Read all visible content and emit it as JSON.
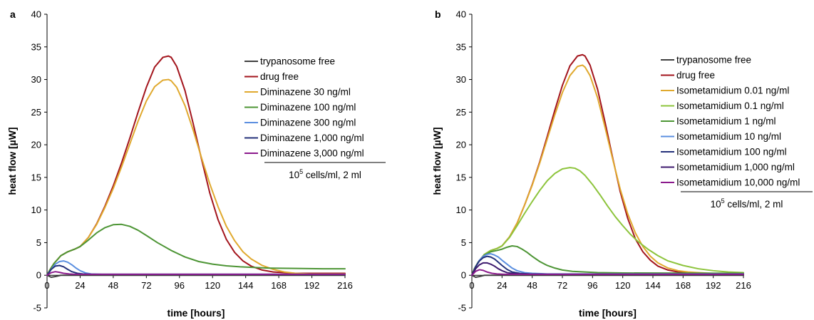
{
  "chart_data": [
    {
      "type": "line",
      "panel_label": "a",
      "xlabel": "time [hours]",
      "ylabel": "heat flow [µW]",
      "xlim": [
        0,
        216
      ],
      "ylim": [
        -5,
        40
      ],
      "xticks": [
        0,
        24,
        48,
        72,
        96,
        120,
        144,
        168,
        192,
        216
      ],
      "yticks": [
        -5,
        0,
        5,
        10,
        15,
        20,
        25,
        30,
        35,
        40
      ],
      "legend_position": "right",
      "note_base": "10",
      "note_exp": "5",
      "note_rest": " cells/ml, 2 ml",
      "series": [
        {
          "name": "trypanosome free",
          "color": "#404040",
          "x": [
            0,
            3,
            6,
            10,
            16,
            24,
            60,
            120,
            216
          ],
          "y": [
            0,
            -0.3,
            -0.2,
            0,
            0,
            0,
            0,
            0,
            0
          ]
        },
        {
          "name": "drug free",
          "color": "#a3151d",
          "x": [
            0,
            2,
            5,
            10,
            15,
            20,
            24,
            30,
            36,
            42,
            48,
            54,
            60,
            66,
            72,
            78,
            84,
            88,
            90,
            94,
            100,
            106,
            112,
            118,
            124,
            130,
            136,
            142,
            148,
            156,
            164,
            172,
            180,
            190,
            200,
            216
          ],
          "y": [
            0,
            0.8,
            1.8,
            3.0,
            3.6,
            4.0,
            4.4,
            5.8,
            7.9,
            10.6,
            13.7,
            17.2,
            21.0,
            25.0,
            28.8,
            31.9,
            33.4,
            33.6,
            33.4,
            32.0,
            28.3,
            23.2,
            17.8,
            12.6,
            8.5,
            5.5,
            3.5,
            2.2,
            1.4,
            0.8,
            0.5,
            0.4,
            0.3,
            0.3,
            0.3,
            0.3
          ]
        },
        {
          "name": "Diminazene 30 ng/ml",
          "color": "#e0a92e",
          "x": [
            0,
            2,
            5,
            10,
            15,
            20,
            24,
            30,
            36,
            42,
            48,
            54,
            60,
            66,
            72,
            78,
            84,
            88,
            90,
            94,
            100,
            106,
            112,
            118,
            124,
            130,
            136,
            142,
            148,
            156,
            164,
            172,
            180,
            190,
            200,
            216
          ],
          "y": [
            0,
            0.8,
            1.8,
            3.0,
            3.6,
            4.0,
            4.4,
            5.8,
            7.8,
            10.4,
            13.3,
            16.6,
            20.1,
            23.6,
            26.7,
            28.9,
            29.9,
            30.0,
            29.8,
            28.8,
            26.0,
            22.2,
            18.0,
            14.0,
            10.5,
            7.5,
            5.3,
            3.6,
            2.5,
            1.5,
            0.9,
            0.5,
            0.3,
            0.2,
            0.2,
            0.2
          ]
        },
        {
          "name": "Diminazene 100 ng/ml",
          "color": "#4d9535",
          "x": [
            0,
            2,
            5,
            10,
            15,
            20,
            24,
            30,
            36,
            42,
            48,
            54,
            60,
            66,
            72,
            80,
            90,
            100,
            110,
            120,
            130,
            140,
            150,
            160,
            180,
            200,
            216
          ],
          "y": [
            0,
            0.8,
            1.8,
            3.0,
            3.6,
            4.0,
            4.4,
            5.4,
            6.5,
            7.3,
            7.75,
            7.8,
            7.5,
            6.9,
            6.1,
            5.0,
            3.8,
            2.8,
            2.1,
            1.7,
            1.45,
            1.3,
            1.2,
            1.1,
            1.05,
            1.0,
            1.0
          ]
        },
        {
          "name": "Diminazene 300 ng/ml",
          "color": "#5b8fe0",
          "x": [
            0,
            3,
            6,
            9,
            12,
            15,
            18,
            21,
            24,
            28,
            32,
            40,
            60,
            216
          ],
          "y": [
            0,
            0.9,
            1.7,
            2.1,
            2.2,
            2.0,
            1.6,
            1.1,
            0.7,
            0.35,
            0.2,
            0.15,
            0.15,
            0.15
          ]
        },
        {
          "name": "Diminazene 1,000 ng/ml",
          "color": "#24317a",
          "x": [
            0,
            3,
            6,
            9,
            12,
            15,
            18,
            22,
            26,
            32,
            60,
            216
          ],
          "y": [
            0,
            0.9,
            1.4,
            1.5,
            1.3,
            0.9,
            0.55,
            0.3,
            0.2,
            0.15,
            0.15,
            0.15
          ]
        },
        {
          "name": "Diminazene 3,000 ng/ml",
          "color": "#8b1a8c",
          "x": [
            0,
            3,
            6,
            9,
            12,
            16,
            20,
            26,
            60,
            216
          ],
          "y": [
            0,
            0.4,
            0.55,
            0.45,
            0.3,
            0.2,
            0.15,
            0.15,
            0.15,
            0.15
          ]
        }
      ]
    },
    {
      "type": "line",
      "panel_label": "b",
      "xlabel": "time [hours]",
      "ylabel": "heat flow [µW]",
      "xlim": [
        0,
        216
      ],
      "ylim": [
        -5,
        40
      ],
      "xticks": [
        0,
        24,
        48,
        72,
        96,
        120,
        144,
        168,
        192,
        216
      ],
      "yticks": [
        -5,
        0,
        5,
        10,
        15,
        20,
        25,
        30,
        35,
        40
      ],
      "legend_position": "right",
      "note_base": "10",
      "note_exp": "5",
      "note_rest": " cells/ml, 2 ml",
      "series": [
        {
          "name": "trypanosome free",
          "color": "#404040",
          "x": [
            0,
            3,
            6,
            10,
            16,
            24,
            60,
            120,
            216
          ],
          "y": [
            0,
            -0.3,
            -0.2,
            0,
            0,
            0,
            0,
            0,
            0
          ]
        },
        {
          "name": "drug free",
          "color": "#a3151d",
          "x": [
            0,
            2,
            5,
            10,
            15,
            20,
            24,
            30,
            36,
            42,
            48,
            54,
            60,
            66,
            72,
            78,
            84,
            88,
            90,
            94,
            100,
            106,
            112,
            118,
            124,
            130,
            136,
            142,
            148,
            156,
            164,
            172,
            180,
            190,
            200,
            216
          ],
          "y": [
            0,
            1.0,
            2.0,
            3.2,
            3.8,
            4.1,
            4.5,
            5.9,
            8.0,
            10.8,
            13.9,
            17.4,
            21.3,
            25.3,
            29.1,
            32.1,
            33.6,
            33.8,
            33.6,
            32.2,
            28.5,
            23.4,
            18.0,
            12.8,
            8.7,
            5.6,
            3.6,
            2.3,
            1.4,
            0.8,
            0.5,
            0.4,
            0.3,
            0.3,
            0.3,
            0.3
          ]
        },
        {
          "name": "Isometamidium 0.01 ng/ml",
          "color": "#e0a92e",
          "x": [
            0,
            2,
            5,
            10,
            15,
            20,
            24,
            30,
            36,
            42,
            48,
            54,
            60,
            66,
            72,
            78,
            84,
            88,
            90,
            94,
            100,
            106,
            112,
            118,
            124,
            130,
            136,
            142,
            148,
            156,
            164,
            172,
            180,
            190,
            200,
            216
          ],
          "y": [
            0,
            1.0,
            2.0,
            3.2,
            3.8,
            4.1,
            4.5,
            5.9,
            8.0,
            10.8,
            13.8,
            17.2,
            20.9,
            24.6,
            28.0,
            30.6,
            32.0,
            32.2,
            31.9,
            30.6,
            27.2,
            22.6,
            17.8,
            13.2,
            9.4,
            6.5,
            4.4,
            2.9,
            1.9,
            1.1,
            0.7,
            0.5,
            0.4,
            0.3,
            0.3,
            0.3
          ]
        },
        {
          "name": "Isometamidium 0.1 ng/ml",
          "color": "#8dc43c",
          "x": [
            0,
            2,
            5,
            10,
            15,
            20,
            24,
            30,
            36,
            42,
            48,
            54,
            60,
            66,
            72,
            78,
            82,
            86,
            90,
            96,
            102,
            108,
            114,
            120,
            126,
            132,
            140,
            148,
            156,
            168,
            180,
            192,
            204,
            216
          ],
          "y": [
            0,
            1.0,
            2.0,
            3.2,
            3.8,
            4.1,
            4.5,
            5.8,
            7.6,
            9.5,
            11.3,
            13.0,
            14.5,
            15.6,
            16.3,
            16.5,
            16.4,
            16.0,
            15.3,
            13.9,
            12.3,
            10.6,
            9.0,
            7.6,
            6.3,
            5.2,
            4.0,
            3.0,
            2.2,
            1.5,
            1.0,
            0.7,
            0.5,
            0.4
          ]
        },
        {
          "name": "Isometamidium 1 ng/ml",
          "color": "#4d9535",
          "x": [
            0,
            2,
            5,
            10,
            15,
            20,
            24,
            28,
            32,
            36,
            40,
            44,
            48,
            54,
            60,
            66,
            72,
            80,
            90,
            100,
            120,
            216
          ],
          "y": [
            0,
            1.0,
            2.0,
            3.1,
            3.6,
            3.8,
            4.0,
            4.3,
            4.5,
            4.4,
            4.0,
            3.5,
            2.9,
            2.1,
            1.5,
            1.1,
            0.8,
            0.6,
            0.5,
            0.4,
            0.35,
            0.3
          ]
        },
        {
          "name": "Isometamidium 10 ng/ml",
          "color": "#5b8fe0",
          "x": [
            0,
            3,
            6,
            9,
            12,
            15,
            18,
            21,
            24,
            28,
            32,
            36,
            42,
            48,
            60,
            216
          ],
          "y": [
            0,
            1.3,
            2.3,
            2.9,
            3.2,
            3.3,
            3.1,
            2.8,
            2.3,
            1.7,
            1.1,
            0.7,
            0.4,
            0.3,
            0.2,
            0.2
          ]
        },
        {
          "name": "Isometamidium 100 ng/ml",
          "color": "#24317a",
          "x": [
            0,
            3,
            6,
            9,
            12,
            15,
            18,
            21,
            24,
            28,
            32,
            38,
            46,
            60,
            216
          ],
          "y": [
            0,
            1.3,
            2.2,
            2.7,
            2.9,
            2.8,
            2.5,
            2.0,
            1.5,
            0.9,
            0.5,
            0.3,
            0.2,
            0.15,
            0.15
          ]
        },
        {
          "name": "Isometamidium 1,000 ng/ml",
          "color": "#3d1a6e",
          "x": [
            0,
            3,
            6,
            9,
            12,
            15,
            18,
            21,
            24,
            28,
            34,
            42,
            60,
            216
          ],
          "y": [
            0,
            1.0,
            1.6,
            1.9,
            1.9,
            1.7,
            1.4,
            1.0,
            0.7,
            0.4,
            0.25,
            0.15,
            0.15,
            0.15
          ]
        },
        {
          "name": "Isometamidium 10,000 ng/ml",
          "color": "#8b1a8c",
          "x": [
            0,
            3,
            6,
            9,
            12,
            16,
            20,
            26,
            60,
            216
          ],
          "y": [
            0,
            0.6,
            0.85,
            0.75,
            0.5,
            0.3,
            0.2,
            0.15,
            0.15,
            0.15
          ]
        }
      ]
    }
  ]
}
